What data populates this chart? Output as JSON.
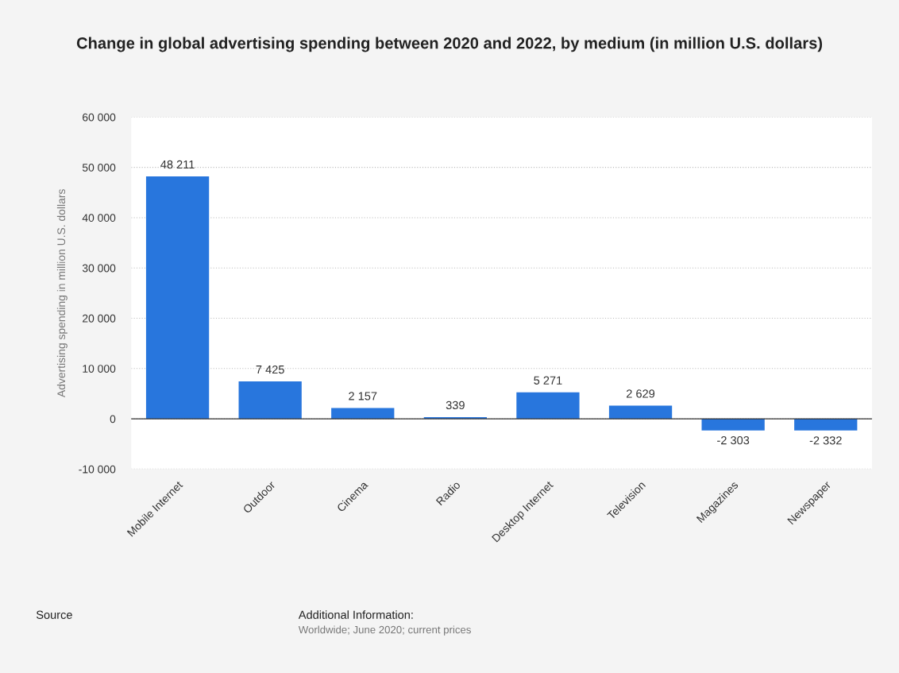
{
  "chart_data": {
    "type": "bar",
    "title": "Change in global advertising spending between 2020 and 2022, by medium (in million U.S. dollars)",
    "ylabel": "Advertising spending in million U.S. dollars",
    "categories": [
      "Mobile Internet",
      "Outdoor",
      "Cinema",
      "Radio",
      "Desktop Internet",
      "Television",
      "Magazines",
      "Newspaper"
    ],
    "values": [
      48211,
      7425,
      2157,
      339,
      5271,
      2629,
      -2303,
      -2332
    ],
    "value_labels": [
      "48 211",
      "7 425",
      "2 157",
      "339",
      "5 271",
      "2 629",
      "-2 303",
      "-2 332"
    ],
    "color": "#2876dd",
    "ylim": [
      -10000,
      60000
    ],
    "yticks": [
      {
        "value": -10000,
        "label": "-10 000"
      },
      0,
      {
        "value": 10000,
        "label": "10 000"
      },
      {
        "value": 20000,
        "label": "20 000"
      },
      {
        "value": 30000,
        "label": "30 000"
      },
      {
        "value": 40000,
        "label": "40 000"
      },
      {
        "value": 50000,
        "label": "50 000"
      },
      {
        "value": 60000,
        "label": "60 000"
      }
    ],
    "grid": "y",
    "annotations": [
      "Source",
      "Additional Information:",
      "Worldwide; June 2020; current prices"
    ]
  }
}
